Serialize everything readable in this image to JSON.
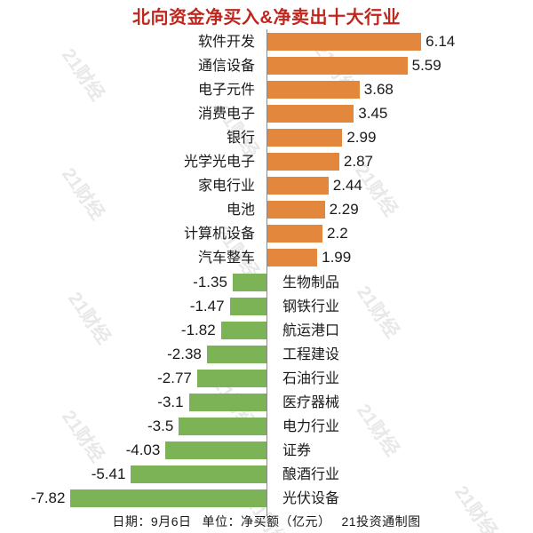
{
  "title": "北向资金净买入&净卖出十大行业",
  "title_color": "#C0261D",
  "watermark_text": "21财经",
  "footer": {
    "date_label": "日期：9月6日",
    "unit_label": "单位：净买额（亿元）",
    "credit": "21投资通制图"
  },
  "chart_data": {
    "type": "bar",
    "orientation": "horizontal",
    "title": "北向资金净买入&净卖出十大行业",
    "unit": "净买额（亿元）",
    "date": "9月6日",
    "xlim": [
      -8.5,
      7
    ],
    "grid": false,
    "categories": [
      "软件开发",
      "通信设备",
      "电子元件",
      "消费电子",
      "银行",
      "光学光电子",
      "家电行业",
      "电池",
      "计算机设备",
      "汽车整车",
      "生物制品",
      "钢铁行业",
      "航运港口",
      "工程建设",
      "石油行业",
      "医疗器械",
      "电力行业",
      "证券",
      "酿酒行业",
      "光伏设备"
    ],
    "values": [
      6.14,
      5.59,
      3.68,
      3.45,
      2.99,
      2.87,
      2.44,
      2.29,
      2.2,
      1.99,
      -1.35,
      -1.47,
      -1.82,
      -2.38,
      -2.77,
      -3.1,
      -3.5,
      -4.03,
      -5.41,
      -7.82
    ],
    "value_labels": [
      "6.14",
      "5.59",
      "3.68",
      "3.45",
      "2.99",
      "2.87",
      "2.44",
      "2.29",
      "2.2",
      "1.99",
      "-1.35",
      "-1.47",
      "-1.82",
      "-2.38",
      "-2.77",
      "-3.1",
      "-3.5",
      "-4.03",
      "-5.41",
      "-7.82"
    ],
    "colors": {
      "positive_bar": "#E2873B",
      "negative_bar": "#7CB356",
      "axis_line": "#8a8a8a",
      "text": "#1a1a1a"
    },
    "legend": null
  }
}
